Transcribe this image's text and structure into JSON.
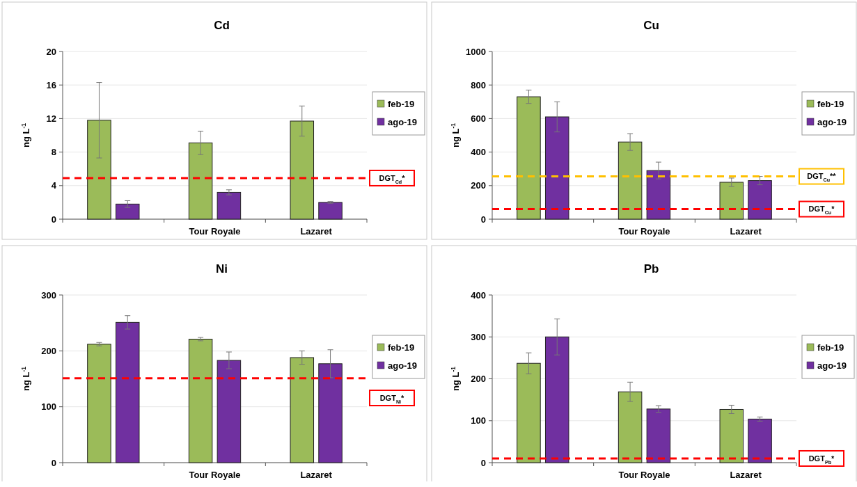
{
  "chart_data": [
    {
      "type": "bar",
      "title": "Cd",
      "ylabel": "ng L$^{-1}$",
      "categories": [
        null,
        "Tour Royale",
        "Lazaret"
      ],
      "ylim": [
        0,
        20
      ],
      "yticks": [
        0,
        4,
        8,
        12,
        16,
        20
      ],
      "grid": "y",
      "legend": "right",
      "series": [
        {
          "name": "feb-19",
          "color": "#9bbb59",
          "values": [
            11.8,
            9.1,
            11.7
          ],
          "errors": [
            4.5,
            1.4,
            1.8
          ]
        },
        {
          "name": "ago-19",
          "color": "#7030a0",
          "values": [
            1.8,
            3.2,
            2.0
          ],
          "errors": [
            0.4,
            0.3,
            0.1
          ]
        }
      ],
      "ref_lines": [
        {
          "axis": "y",
          "value": 4.9,
          "label": "DGT$_{Cd}$*",
          "color": "#ff0000",
          "line_style": "dashed"
        }
      ]
    },
    {
      "type": "bar",
      "title": "Cu",
      "ylabel": "ng L$^{-1}$",
      "categories": [
        null,
        "Tour Royale",
        "Lazaret"
      ],
      "ylim": [
        0,
        1000
      ],
      "yticks": [
        0,
        200,
        400,
        600,
        800,
        1000
      ],
      "grid": "y",
      "legend": "right",
      "series": [
        {
          "name": "feb-19",
          "color": "#9bbb59",
          "values": [
            730,
            460,
            220
          ],
          "errors": [
            40,
            50,
            25
          ]
        },
        {
          "name": "ago-19",
          "color": "#7030a0",
          "values": [
            610,
            290,
            230
          ],
          "errors": [
            90,
            50,
            25
          ]
        }
      ],
      "ref_lines": [
        {
          "axis": "y",
          "value": 255,
          "label": "DGT$_{Cu}$**",
          "color": "#ffc000",
          "line_style": "dashed"
        },
        {
          "axis": "y",
          "value": 60,
          "label": "DGT$_{Cu}$*",
          "color": "#ff0000",
          "line_style": "dashed"
        }
      ]
    },
    {
      "type": "bar",
      "title": "Ni",
      "ylabel": "ng L$^{-1}$",
      "categories": [
        null,
        "Tour Royale",
        "Lazaret"
      ],
      "ylim": [
        0,
        300
      ],
      "yticks": [
        0,
        100,
        200,
        300
      ],
      "grid": "y",
      "legend": "right",
      "series": [
        {
          "name": "feb-19",
          "color": "#9bbb59",
          "values": [
            212,
            221,
            188
          ],
          "errors": [
            3,
            3,
            12
          ]
        },
        {
          "name": "ago-19",
          "color": "#7030a0",
          "values": [
            251,
            183,
            177
          ],
          "errors": [
            12,
            15,
            25
          ]
        }
      ],
      "ref_lines": [
        {
          "axis": "y",
          "value": 151,
          "label": "DGT$_{Ni}$*",
          "color": "#ff0000",
          "line_style": "dashed"
        }
      ]
    },
    {
      "type": "bar",
      "title": "Pb",
      "ylabel": "ng L$^{-1}$",
      "categories": [
        null,
        "Tour Royale",
        "Lazaret"
      ],
      "ylim": [
        0,
        400
      ],
      "yticks": [
        0,
        100,
        200,
        300,
        400
      ],
      "grid": "y",
      "legend": "right",
      "series": [
        {
          "name": "feb-19",
          "color": "#9bbb59",
          "values": [
            237,
            169,
            127
          ],
          "errors": [
            25,
            23,
            10
          ]
        },
        {
          "name": "ago-19",
          "color": "#7030a0",
          "values": [
            300,
            128,
            104
          ],
          "errors": [
            43,
            8,
            5
          ]
        }
      ],
      "ref_lines": [
        {
          "axis": "y",
          "value": 10,
          "label": "DGT$_{Pb}$*",
          "color": "#ff0000",
          "line_style": "dashed"
        }
      ]
    }
  ]
}
